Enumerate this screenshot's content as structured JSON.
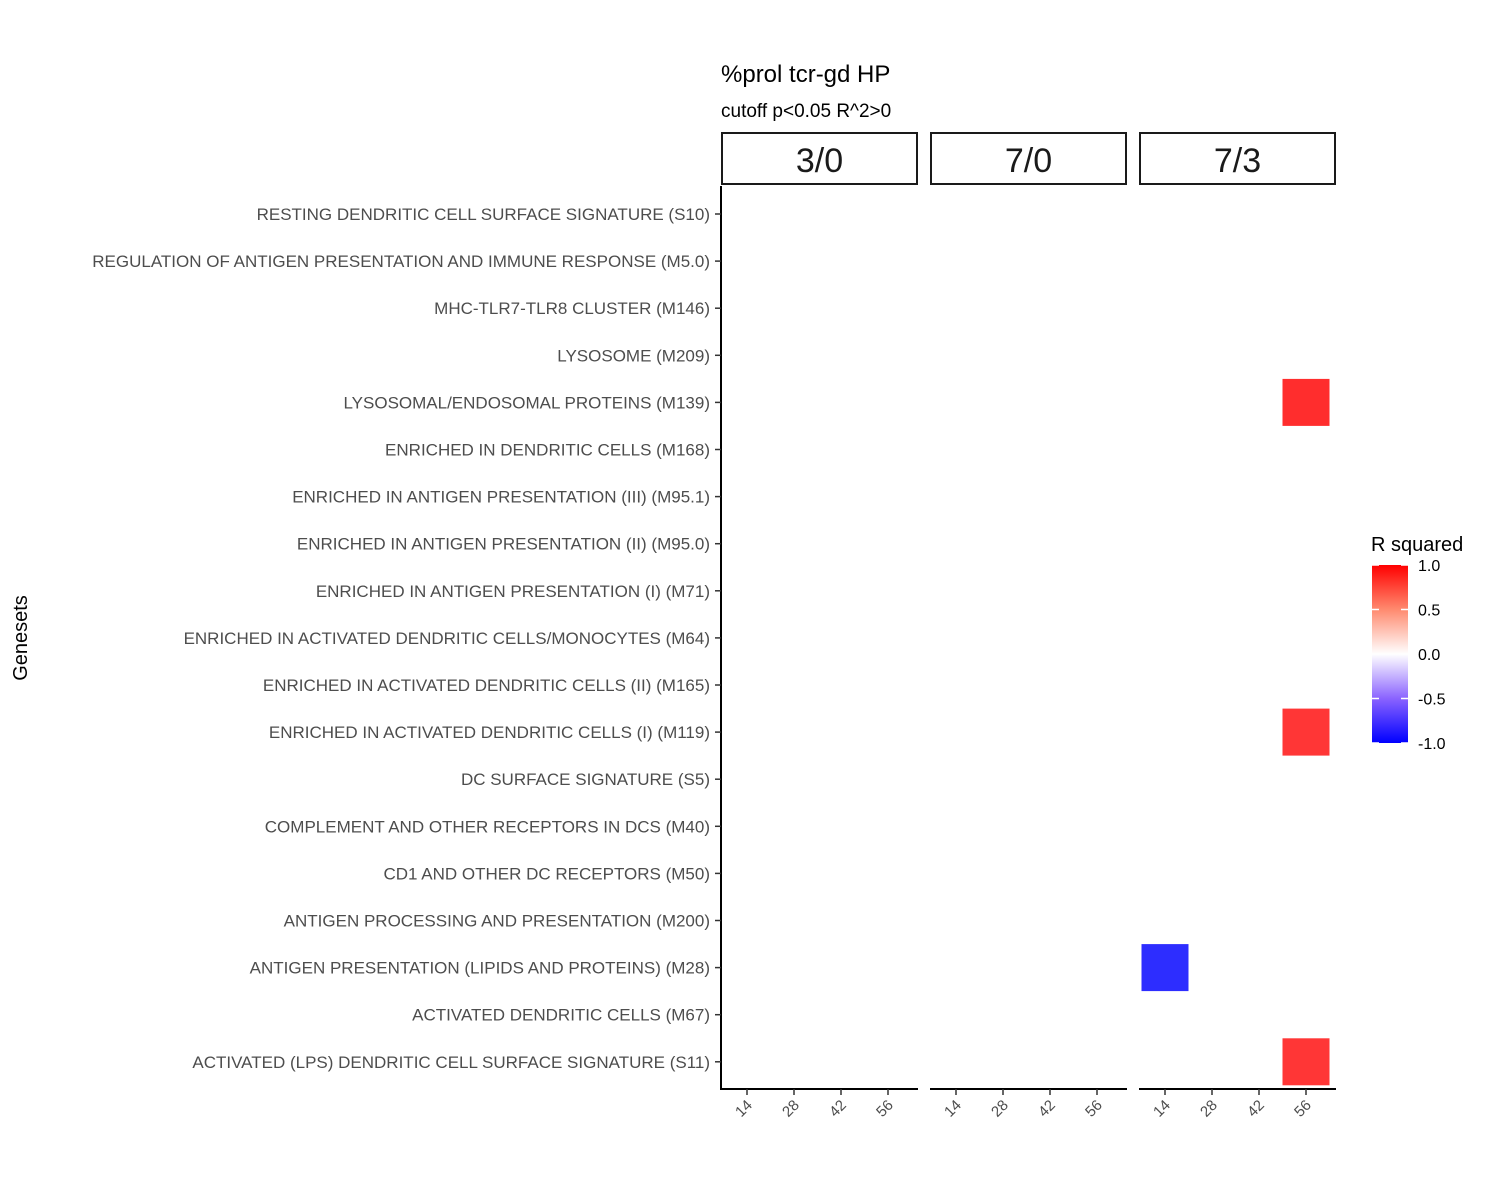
{
  "chart_data": {
    "type": "heatmap",
    "title": "%prol tcr-gd HP",
    "subtitle": "cutoff p<0.05 R^2>0",
    "ylabel": "Genesets",
    "xlabel": "",
    "facets": [
      "3/0",
      "7/0",
      "7/3"
    ],
    "x": [
      "14",
      "28",
      "42",
      "56"
    ],
    "y": [
      "RESTING DENDRITIC CELL SURFACE SIGNATURE (S10)",
      "REGULATION OF ANTIGEN PRESENTATION AND IMMUNE RESPONSE (M5.0)",
      "MHC-TLR7-TLR8 CLUSTER (M146)",
      "LYSOSOME (M209)",
      "LYSOSOMAL/ENDOSOMAL PROTEINS (M139)",
      "ENRICHED IN DENDRITIC CELLS (M168)",
      "ENRICHED IN ANTIGEN PRESENTATION (III) (M95.1)",
      "ENRICHED IN ANTIGEN PRESENTATION (II) (M95.0)",
      "ENRICHED IN ANTIGEN PRESENTATION (I) (M71)",
      "ENRICHED IN ACTIVATED DENDRITIC CELLS/MONOCYTES (M64)",
      "ENRICHED IN ACTIVATED DENDRITIC CELLS (II) (M165)",
      "ENRICHED IN ACTIVATED DENDRITIC CELLS (I) (M119)",
      "DC SURFACE SIGNATURE (S5)",
      "COMPLEMENT AND OTHER RECEPTORS IN DCS (M40)",
      "CD1 AND OTHER DC RECEPTORS (M50)",
      "ANTIGEN PROCESSING AND PRESENTATION (M200)",
      "ANTIGEN PRESENTATION (LIPIDS AND PROTEINS) (M28)",
      "ACTIVATED DENDRITIC CELLS (M67)",
      "ACTIVATED (LPS) DENDRITIC CELL SURFACE SIGNATURE (S11)"
    ],
    "cells": [
      {
        "facet": "7/3",
        "x": "56",
        "y": "LYSOSOMAL/ENDOSOMAL PROTEINS (M139)",
        "value": 0.7
      },
      {
        "facet": "7/3",
        "x": "56",
        "y": "ENRICHED IN ACTIVATED DENDRITIC CELLS (I) (M119)",
        "value": 0.65
      },
      {
        "facet": "7/3",
        "x": "14",
        "y": "ANTIGEN PRESENTATION (LIPIDS AND PROTEINS) (M28)",
        "value": -0.7
      },
      {
        "facet": "7/3",
        "x": "56",
        "y": "ACTIVATED (LPS) DENDRITIC CELL SURFACE SIGNATURE (S11)",
        "value": 0.65
      }
    ],
    "legend": {
      "title": "R squared",
      "position": "right",
      "ticks": [
        "1.0",
        "0.5",
        "0.0",
        "-0.5",
        "-1.0"
      ],
      "range": [
        -1,
        1
      ],
      "low_color": "#0000ff",
      "mid_color": "#ffffff",
      "high_color": "#ff0000"
    },
    "grid": false
  }
}
